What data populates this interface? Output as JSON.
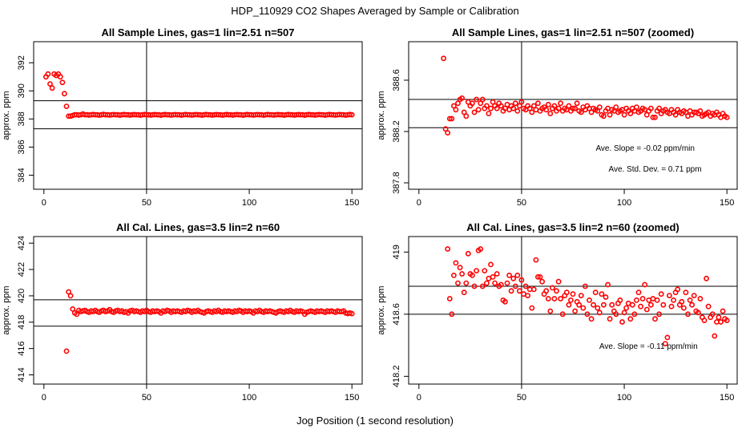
{
  "figure": {
    "title": "HDP_110929  CO2 Shapes Averaged by Sample or Calibration",
    "xlabel": "Jog Position (1 second resolution)"
  },
  "colors": {
    "points": "#ff0000",
    "axes": "#000000"
  },
  "chart_data": [
    {
      "type": "scatter",
      "title": "All Sample Lines, gas=1 lin=2.51 n=507",
      "ylabel": "approx. ppm",
      "xlim": [
        -5,
        155
      ],
      "ylim": [
        383,
        393.5
      ],
      "xticks": [
        0,
        50,
        100,
        150
      ],
      "yticks": [
        384,
        386,
        388,
        390,
        392
      ],
      "vline": 50,
      "hlines": [
        389.3,
        387.3
      ],
      "annotations": [],
      "points": "full",
      "x": [
        1,
        2,
        3,
        4,
        5,
        6,
        7,
        8,
        9,
        10,
        11,
        12,
        13,
        14,
        15,
        16,
        17,
        18,
        19,
        20,
        21,
        22,
        23,
        24,
        25,
        26,
        27,
        28,
        29,
        30,
        31,
        32,
        33,
        34,
        35,
        36,
        37,
        38,
        39,
        40,
        41,
        42,
        43,
        44,
        45,
        46,
        47,
        48,
        49,
        50,
        51,
        52,
        53,
        54,
        55,
        56,
        57,
        58,
        59,
        60,
        61,
        62,
        63,
        64,
        65,
        66,
        67,
        68,
        69,
        70,
        71,
        72,
        73,
        74,
        75,
        76,
        77,
        78,
        79,
        80,
        81,
        82,
        83,
        84,
        85,
        86,
        87,
        88,
        89,
        90,
        91,
        92,
        93,
        94,
        95,
        96,
        97,
        98,
        99,
        100,
        101,
        102,
        103,
        104,
        105,
        106,
        107,
        108,
        109,
        110,
        111,
        112,
        113,
        114,
        115,
        116,
        117,
        118,
        119,
        120,
        121,
        122,
        123,
        124,
        125,
        126,
        127,
        128,
        129,
        130,
        131,
        132,
        133,
        134,
        135,
        136,
        137,
        138,
        139,
        140,
        141,
        142,
        143,
        144,
        145,
        146,
        147,
        148,
        149,
        150
      ],
      "y": [
        391.0,
        391.2,
        390.5,
        390.2,
        391.2,
        391.1,
        391.2,
        391.0,
        390.6,
        389.8,
        388.9,
        388.2,
        388.2,
        388.25,
        388.3,
        388.3,
        388.28,
        388.3,
        388.35,
        388.3,
        388.3,
        388.28,
        388.3,
        388.32,
        388.3,
        388.3,
        388.27,
        388.3,
        388.33,
        388.3,
        388.3,
        388.28,
        388.3,
        388.31,
        388.3,
        388.3,
        388.27,
        388.3,
        388.32,
        388.3,
        388.3,
        388.28,
        388.3,
        388.31,
        388.3,
        388.3,
        388.27,
        388.3,
        388.32,
        388.3,
        388.3,
        388.28,
        388.3,
        388.31,
        388.3,
        388.3,
        388.27,
        388.3,
        388.32,
        388.3,
        388.3,
        388.28,
        388.3,
        388.31,
        388.3,
        388.3,
        388.27,
        388.3,
        388.32,
        388.3,
        388.3,
        388.28,
        388.3,
        388.31,
        388.3,
        388.3,
        388.27,
        388.3,
        388.32,
        388.3,
        388.3,
        388.28,
        388.3,
        388.31,
        388.3,
        388.3,
        388.27,
        388.3,
        388.32,
        388.3,
        388.3,
        388.28,
        388.3,
        388.31,
        388.3,
        388.3,
        388.27,
        388.3,
        388.32,
        388.3,
        388.3,
        388.28,
        388.3,
        388.31,
        388.3,
        388.3,
        388.27,
        388.3,
        388.32,
        388.3,
        388.3,
        388.28,
        388.3,
        388.31,
        388.3,
        388.3,
        388.27,
        388.3,
        388.32,
        388.3,
        388.3,
        388.28,
        388.3,
        388.31,
        388.3,
        388.3,
        388.27,
        388.3,
        388.32,
        388.3,
        388.3,
        388.28,
        388.3,
        388.31,
        388.3,
        388.3,
        388.27,
        388.3,
        388.32,
        388.3,
        388.3,
        388.28,
        388.3,
        388.31,
        388.3,
        388.3,
        388.27,
        388.3,
        388.32,
        388.3
      ]
    },
    {
      "type": "scatter",
      "title": "All Sample Lines, gas=1 lin=2.51 n=507 (zoomed)",
      "ylabel": "approx. ppm",
      "xlim": [
        -5,
        155
      ],
      "ylim": [
        387.75,
        388.9
      ],
      "xticks": [
        0,
        50,
        100,
        150
      ],
      "yticks": [
        387.8,
        388.2,
        388.6
      ],
      "vline": 50,
      "hlines": [
        388.45,
        388.23
      ],
      "annotations": [
        "Ave. Slope =  -0.02  ppm/min",
        "Ave. Std. Dev. =  0.71  ppm"
      ],
      "x": [
        12,
        13,
        14,
        15,
        16,
        17,
        18,
        19,
        20,
        21,
        22,
        23,
        24,
        25,
        26,
        27,
        28,
        29,
        30,
        31,
        32,
        33,
        34,
        35,
        36,
        37,
        38,
        39,
        40,
        41,
        42,
        43,
        44,
        45,
        46,
        47,
        48,
        49,
        50,
        51,
        52,
        53,
        54,
        55,
        56,
        57,
        58,
        59,
        60,
        61,
        62,
        63,
        64,
        65,
        66,
        67,
        68,
        69,
        70,
        71,
        72,
        73,
        74,
        75,
        76,
        77,
        78,
        79,
        80,
        81,
        82,
        83,
        84,
        85,
        86,
        87,
        88,
        89,
        90,
        91,
        92,
        93,
        94,
        95,
        96,
        97,
        98,
        99,
        100,
        101,
        102,
        103,
        104,
        105,
        106,
        107,
        108,
        109,
        110,
        111,
        112,
        113,
        114,
        115,
        116,
        117,
        118,
        119,
        120,
        121,
        122,
        123,
        124,
        125,
        126,
        127,
        128,
        129,
        130,
        131,
        132,
        133,
        134,
        135,
        136,
        137,
        138,
        139,
        140,
        141,
        142,
        143,
        144,
        145,
        146,
        147,
        148,
        149,
        150
      ],
      "y": [
        388.77,
        388.22,
        388.19,
        388.3,
        388.3,
        388.4,
        388.37,
        388.42,
        388.45,
        388.46,
        388.35,
        388.32,
        388.43,
        388.4,
        388.42,
        388.35,
        388.45,
        388.37,
        388.42,
        388.45,
        388.38,
        388.4,
        388.34,
        388.38,
        388.43,
        388.4,
        388.38,
        388.42,
        388.4,
        388.36,
        388.38,
        388.41,
        388.37,
        388.4,
        388.38,
        388.42,
        388.36,
        388.4,
        388.43,
        388.38,
        388.37,
        388.4,
        388.38,
        388.35,
        388.4,
        388.37,
        388.42,
        388.36,
        388.38,
        388.39,
        388.37,
        388.41,
        388.34,
        388.38,
        388.4,
        388.36,
        388.38,
        388.42,
        388.36,
        388.38,
        388.37,
        388.4,
        388.36,
        388.38,
        388.38,
        388.42,
        388.36,
        388.35,
        388.39,
        388.37,
        388.4,
        388.38,
        388.35,
        388.38,
        388.37,
        388.36,
        388.39,
        388.33,
        388.32,
        388.36,
        388.38,
        388.33,
        388.37,
        388.36,
        388.39,
        388.35,
        388.36,
        388.37,
        388.33,
        388.38,
        388.36,
        388.34,
        388.38,
        388.36,
        388.39,
        388.35,
        388.36,
        388.38,
        388.37,
        388.33,
        388.36,
        388.38,
        388.31,
        388.31,
        388.36,
        388.38,
        388.34,
        388.36,
        388.37,
        388.35,
        388.34,
        388.37,
        388.35,
        388.33,
        388.37,
        388.35,
        388.34,
        388.36,
        388.35,
        388.32,
        388.36,
        388.33,
        388.35,
        388.35,
        388.34,
        388.36,
        388.32,
        388.33,
        388.34,
        388.35,
        388.32,
        388.34,
        388.33,
        388.35,
        388.33,
        388.31,
        388.34,
        388.32,
        388.31
      ]
    },
    {
      "type": "scatter",
      "title": "All Cal. Lines, gas=3.5 lin=2 n=60",
      "ylabel": "approx. ppm",
      "xlim": [
        -5,
        155
      ],
      "ylim": [
        413.3,
        424.5
      ],
      "xticks": [
        0,
        50,
        100,
        150
      ],
      "yticks": [
        414,
        416,
        418,
        420,
        422,
        424
      ],
      "vline": 50,
      "hlines": [
        419.7,
        417.7
      ],
      "annotations": [],
      "x": [
        11,
        12,
        13,
        14,
        15,
        16,
        17,
        18,
        19,
        20,
        21,
        22,
        23,
        24,
        25,
        26,
        27,
        28,
        29,
        30,
        31,
        32,
        33,
        34,
        35,
        36,
        37,
        38,
        39,
        40,
        41,
        42,
        43,
        44,
        45,
        46,
        47,
        48,
        49,
        50,
        51,
        52,
        53,
        54,
        55,
        56,
        57,
        58,
        59,
        60,
        61,
        62,
        63,
        64,
        65,
        66,
        67,
        68,
        69,
        70,
        71,
        72,
        73,
        74,
        75,
        76,
        77,
        78,
        79,
        80,
        81,
        82,
        83,
        84,
        85,
        86,
        87,
        88,
        89,
        90,
        91,
        92,
        93,
        94,
        95,
        96,
        97,
        98,
        99,
        100,
        101,
        102,
        103,
        104,
        105,
        106,
        107,
        108,
        109,
        110,
        111,
        112,
        113,
        114,
        115,
        116,
        117,
        118,
        119,
        120,
        121,
        122,
        123,
        124,
        125,
        126,
        127,
        128,
        129,
        130,
        131,
        132,
        133,
        134,
        135,
        136,
        137,
        138,
        139,
        140,
        141,
        142,
        143,
        144,
        145,
        146,
        147,
        148,
        149,
        150
      ],
      "y": [
        415.8,
        420.3,
        420.0,
        419.0,
        418.7,
        418.6,
        418.9,
        418.8,
        418.85,
        418.9,
        418.8,
        418.75,
        418.85,
        418.8,
        418.9,
        418.8,
        418.75,
        418.85,
        418.9,
        418.8,
        418.85,
        418.95,
        418.8,
        418.75,
        418.85,
        418.9,
        418.8,
        418.85,
        418.75,
        418.8,
        418.7,
        418.85,
        418.9,
        418.8,
        418.85,
        418.8,
        418.75,
        418.85,
        418.8,
        418.9,
        418.8,
        418.75,
        418.85,
        418.8,
        418.85,
        418.8,
        418.7,
        418.85,
        418.8,
        418.9,
        418.85,
        418.75,
        418.85,
        418.8,
        418.85,
        418.8,
        418.75,
        418.85,
        418.8,
        418.9,
        418.85,
        418.75,
        418.85,
        418.8,
        418.9,
        418.8,
        418.75,
        418.7,
        418.8,
        418.85,
        418.8,
        418.75,
        418.85,
        418.8,
        418.9,
        418.8,
        418.75,
        418.85,
        418.8,
        418.85,
        418.8,
        418.75,
        418.85,
        418.8,
        418.9,
        418.85,
        418.75,
        418.85,
        418.8,
        418.85,
        418.8,
        418.7,
        418.85,
        418.8,
        418.9,
        418.8,
        418.75,
        418.85,
        418.8,
        418.85,
        418.8,
        418.75,
        418.7,
        418.8,
        418.85,
        418.8,
        418.75,
        418.85,
        418.8,
        418.9,
        418.8,
        418.75,
        418.85,
        418.8,
        418.85,
        418.8,
        418.6,
        418.75,
        418.8,
        418.85,
        418.8,
        418.75,
        418.85,
        418.8,
        418.85,
        418.8,
        418.75,
        418.85,
        418.8,
        418.85,
        418.8,
        418.75,
        418.85,
        418.8,
        418.8,
        418.85,
        418.7,
        418.65,
        418.7,
        418.65
      ]
    },
    {
      "type": "scatter",
      "title": "All Cal. Lines, gas=3.5 lin=2 n=60 (zoomed)",
      "ylabel": "approx. ppm",
      "xlim": [
        -5,
        155
      ],
      "ylim": [
        418.15,
        419.1
      ],
      "xticks": [
        0,
        50,
        100,
        150
      ],
      "yticks": [
        418.2,
        418.6,
        419.0
      ],
      "vline": 50,
      "hlines": [
        418.78,
        418.6
      ],
      "annotations": [
        "Ave. Slope =  -0.11  ppm/min"
      ],
      "x": [
        14,
        15,
        16,
        17,
        18,
        19,
        20,
        21,
        22,
        23,
        24,
        25,
        26,
        27,
        28,
        29,
        30,
        31,
        32,
        33,
        34,
        35,
        36,
        37,
        38,
        39,
        40,
        41,
        42,
        43,
        44,
        45,
        46,
        47,
        48,
        49,
        50,
        51,
        52,
        53,
        54,
        55,
        56,
        57,
        58,
        59,
        60,
        61,
        62,
        63,
        64,
        65,
        66,
        67,
        68,
        69,
        70,
        71,
        72,
        73,
        74,
        75,
        76,
        77,
        78,
        79,
        80,
        81,
        82,
        83,
        84,
        85,
        86,
        87,
        88,
        89,
        90,
        91,
        92,
        93,
        94,
        95,
        96,
        97,
        98,
        99,
        100,
        101,
        102,
        103,
        104,
        105,
        106,
        107,
        108,
        109,
        110,
        111,
        112,
        113,
        114,
        115,
        116,
        117,
        118,
        119,
        120,
        121,
        122,
        123,
        124,
        125,
        126,
        127,
        128,
        129,
        130,
        131,
        132,
        133,
        134,
        135,
        136,
        137,
        138,
        139,
        140,
        141,
        142,
        143,
        144,
        145,
        146,
        147,
        148,
        149,
        150
      ],
      "y": [
        419.02,
        418.7,
        418.6,
        418.85,
        418.93,
        418.8,
        418.9,
        418.86,
        418.74,
        418.8,
        418.99,
        418.86,
        418.85,
        418.78,
        418.88,
        419.01,
        419.02,
        418.78,
        418.88,
        418.8,
        418.83,
        418.92,
        418.84,
        418.8,
        418.86,
        418.78,
        418.79,
        418.69,
        418.68,
        418.8,
        418.85,
        418.75,
        418.83,
        418.78,
        418.85,
        418.75,
        418.82,
        418.73,
        418.78,
        418.72,
        418.76,
        418.64,
        418.76,
        418.95,
        418.84,
        418.84,
        418.81,
        418.73,
        418.75,
        418.7,
        418.62,
        418.77,
        418.7,
        418.75,
        418.81,
        418.7,
        418.6,
        418.72,
        418.74,
        418.66,
        418.69,
        418.73,
        418.62,
        418.68,
        418.66,
        418.72,
        418.64,
        418.78,
        418.6,
        418.69,
        418.57,
        418.66,
        418.74,
        418.64,
        418.61,
        418.73,
        418.66,
        418.71,
        418.79,
        418.57,
        418.66,
        418.62,
        418.6,
        418.67,
        418.69,
        418.55,
        418.61,
        418.64,
        418.67,
        418.57,
        418.66,
        418.6,
        418.69,
        418.74,
        418.65,
        418.7,
        418.79,
        418.63,
        418.69,
        418.66,
        418.7,
        418.57,
        418.69,
        418.6,
        418.73,
        418.66,
        418.41,
        418.45,
        418.72,
        418.65,
        418.69,
        418.74,
        418.76,
        418.66,
        418.68,
        418.64,
        418.74,
        418.6,
        418.69,
        418.66,
        418.72,
        418.62,
        418.61,
        418.7,
        418.58,
        418.56,
        418.83,
        418.65,
        418.58,
        418.6,
        418.46,
        418.55,
        418.58,
        418.55,
        418.62,
        418.57,
        418.56
      ]
    }
  ]
}
